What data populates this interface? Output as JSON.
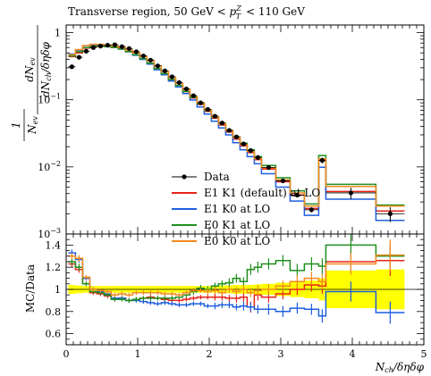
{
  "chart_data": [
    {
      "type": "line",
      "panel": "main",
      "title": "Transverse region, 50 GeV < p_T^Z < 110 GeV",
      "ylabel": "1/N_ev dN_ev/dN_ch/δηδφ",
      "yscale": "log",
      "ylim": [
        0.001,
        1.3
      ],
      "xlim": [
        0,
        5
      ],
      "grid": false,
      "legend_position": "lower-left",
      "y_tick_labels": [
        "1",
        "10^-1",
        "10^-2",
        "10^-3"
      ],
      "y_tick_values": [
        1,
        0.1,
        0.01,
        0.001
      ],
      "bin_edges": [
        0.03,
        0.13,
        0.23,
        0.33,
        0.43,
        0.53,
        0.63,
        0.73,
        0.83,
        0.93,
        1.03,
        1.13,
        1.23,
        1.33,
        1.43,
        1.53,
        1.63,
        1.73,
        1.83,
        1.93,
        2.03,
        2.13,
        2.23,
        2.33,
        2.43,
        2.53,
        2.63,
        2.73,
        2.93,
        3.13,
        3.33,
        3.53,
        3.63,
        4.33,
        4.73
      ],
      "data": {
        "name": "Data",
        "x": [
          0.08,
          0.18,
          0.28,
          0.38,
          0.48,
          0.58,
          0.68,
          0.78,
          0.88,
          0.98,
          1.08,
          1.18,
          1.28,
          1.38,
          1.48,
          1.58,
          1.68,
          1.78,
          1.88,
          1.98,
          2.08,
          2.18,
          2.28,
          2.38,
          2.48,
          2.58,
          2.68,
          2.83,
          3.03,
          3.23,
          3.43,
          3.58,
          3.98,
          4.53
        ],
        "y": [
          0.31,
          0.43,
          0.53,
          0.6,
          0.63,
          0.65,
          0.66,
          0.62,
          0.58,
          0.52,
          0.45,
          0.39,
          0.32,
          0.27,
          0.22,
          0.18,
          0.145,
          0.115,
          0.09,
          0.072,
          0.057,
          0.045,
          0.035,
          0.028,
          0.022,
          0.0175,
          0.0138,
          0.0098,
          0.0062,
          0.0038,
          0.0023,
          0.0125,
          0.0041,
          0.002
        ],
        "yerr": [
          0.02,
          0.02,
          0.02,
          0.02,
          0.02,
          0.02,
          0.02,
          0.02,
          0.02,
          0.02,
          0.02,
          0.015,
          0.012,
          0.01,
          0.009,
          0.008,
          0.007,
          0.006,
          0.005,
          0.004,
          0.003,
          0.003,
          0.002,
          0.002,
          0.0018,
          0.0014,
          0.0011,
          0.0008,
          0.0005,
          0.0003,
          0.0002,
          0.0012,
          0.0008,
          0.0005
        ]
      },
      "series": [
        {
          "name": "E1 K1 (default) at LO",
          "color": "#e8241a",
          "values": [
            0.44,
            0.5,
            0.59,
            0.62,
            0.63,
            0.62,
            0.6,
            0.57,
            0.52,
            0.47,
            0.41,
            0.35,
            0.29,
            0.245,
            0.2,
            0.163,
            0.132,
            0.106,
            0.085,
            0.067,
            0.053,
            0.042,
            0.033,
            0.026,
            0.0205,
            0.0163,
            0.0128,
            0.0093,
            0.006,
            0.0038,
            0.0024,
            0.0125,
            0.0043,
            0.0022
          ]
        },
        {
          "name": "E1 K0 at LO",
          "color": "#1f5fe0",
          "values": [
            0.48,
            0.55,
            0.64,
            0.66,
            0.66,
            0.64,
            0.61,
            0.57,
            0.52,
            0.46,
            0.4,
            0.34,
            0.28,
            0.235,
            0.19,
            0.155,
            0.124,
            0.099,
            0.078,
            0.061,
            0.048,
            0.038,
            0.03,
            0.023,
            0.018,
            0.0142,
            0.0111,
            0.0079,
            0.005,
            0.0031,
            0.0019,
            0.0099,
            0.0033,
            0.0016
          ]
        },
        {
          "name": "E0 K1 at LO",
          "color": "#1f8f1f",
          "values": [
            0.45,
            0.52,
            0.6,
            0.63,
            0.63,
            0.62,
            0.6,
            0.57,
            0.52,
            0.47,
            0.41,
            0.35,
            0.29,
            0.245,
            0.2,
            0.163,
            0.133,
            0.108,
            0.087,
            0.069,
            0.055,
            0.044,
            0.035,
            0.028,
            0.0225,
            0.018,
            0.0142,
            0.0105,
            0.0069,
            0.0044,
            0.0028,
            0.0148,
            0.0055,
            0.0027
          ]
        },
        {
          "name": "E0 K0 at LO",
          "color": "#f28a1e",
          "values": [
            0.47,
            0.56,
            0.64,
            0.67,
            0.67,
            0.65,
            0.63,
            0.6,
            0.55,
            0.5,
            0.44,
            0.38,
            0.32,
            0.265,
            0.215,
            0.175,
            0.142,
            0.113,
            0.09,
            0.071,
            0.056,
            0.044,
            0.035,
            0.0275,
            0.0215,
            0.017,
            0.0133,
            0.0097,
            0.0064,
            0.0041,
            0.0026,
            0.0132,
            0.0051,
            0.0026
          ]
        }
      ]
    },
    {
      "type": "line",
      "panel": "ratio",
      "ylabel": "MC/Data",
      "xlabel": "N_ch/δηδφ",
      "ylim": [
        0.5,
        1.5
      ],
      "xlim": [
        0,
        5
      ],
      "y_tick_labels": [
        "0.6",
        "0.8",
        "1",
        "1.2",
        "1.4"
      ],
      "y_tick_values": [
        0.6,
        0.8,
        1.0,
        1.2,
        1.4
      ],
      "x_tick_labels": [
        "0",
        "1",
        "2",
        "3",
        "4",
        "5"
      ],
      "x_tick_values": [
        0,
        1,
        2,
        3,
        4,
        5
      ],
      "band_color": "#ffff00",
      "band_halfwidth": [
        0.04,
        0.035,
        0.03,
        0.03,
        0.03,
        0.03,
        0.03,
        0.03,
        0.03,
        0.03,
        0.03,
        0.03,
        0.03,
        0.03,
        0.03,
        0.03,
        0.03,
        0.03,
        0.03,
        0.03,
        0.03,
        0.035,
        0.035,
        0.04,
        0.04,
        0.04,
        0.045,
        0.05,
        0.06,
        0.07,
        0.08,
        0.1,
        0.17,
        0.18
      ],
      "series": [
        {
          "name": "E1 K1 (default) at LO",
          "color": "#e8241a",
          "values": [
            1.23,
            1.18,
            1.05,
            0.97,
            0.96,
            0.94,
            0.91,
            0.92,
            0.9,
            0.91,
            0.92,
            0.93,
            0.92,
            0.91,
            0.9,
            0.9,
            0.91,
            0.92,
            0.93,
            0.93,
            0.93,
            0.93,
            0.92,
            0.92,
            0.93,
            0.84,
            0.95,
            0.93,
            0.96,
            1.0,
            1.04,
            1.03,
            1.25,
            1.26
          ],
          "errors": [
            0.03,
            0.03,
            0.02,
            0.02,
            0.02,
            0.02,
            0.02,
            0.02,
            0.02,
            0.02,
            0.02,
            0.02,
            0.02,
            0.02,
            0.02,
            0.02,
            0.02,
            0.02,
            0.02,
            0.02,
            0.03,
            0.03,
            0.03,
            0.04,
            0.04,
            0.05,
            0.05,
            0.05,
            0.05,
            0.05,
            0.06,
            0.07,
            0.1,
            0.14
          ]
        },
        {
          "name": "E1 K0 at LO",
          "color": "#1f5fe0",
          "values": [
            1.33,
            1.27,
            1.1,
            1.0,
            0.98,
            0.96,
            0.92,
            0.92,
            0.9,
            0.9,
            0.89,
            0.88,
            0.87,
            0.88,
            0.87,
            0.86,
            0.86,
            0.87,
            0.87,
            0.85,
            0.85,
            0.86,
            0.86,
            0.84,
            0.85,
            0.84,
            0.82,
            0.82,
            0.8,
            0.83,
            0.82,
            0.76,
            0.98,
            0.79
          ],
          "errors": [
            0.03,
            0.03,
            0.02,
            0.02,
            0.02,
            0.02,
            0.02,
            0.02,
            0.02,
            0.02,
            0.02,
            0.02,
            0.02,
            0.02,
            0.02,
            0.02,
            0.02,
            0.02,
            0.02,
            0.02,
            0.03,
            0.03,
            0.03,
            0.03,
            0.04,
            0.04,
            0.04,
            0.05,
            0.05,
            0.05,
            0.05,
            0.06,
            0.09,
            0.1
          ]
        },
        {
          "name": "E0 K1 at LO",
          "color": "#1f8f1f",
          "values": [
            1.25,
            1.2,
            1.05,
            0.98,
            0.97,
            0.95,
            0.91,
            0.91,
            0.9,
            0.91,
            0.92,
            0.92,
            0.92,
            0.92,
            0.92,
            0.93,
            0.95,
            0.98,
            1.01,
            1.0,
            1.03,
            1.05,
            1.06,
            1.1,
            1.07,
            1.18,
            1.2,
            1.23,
            1.26,
            1.17,
            1.23,
            1.21,
            1.4,
            1.3
          ],
          "errors": [
            0.03,
            0.03,
            0.02,
            0.02,
            0.02,
            0.02,
            0.02,
            0.02,
            0.02,
            0.02,
            0.02,
            0.02,
            0.02,
            0.02,
            0.02,
            0.02,
            0.02,
            0.03,
            0.03,
            0.03,
            0.03,
            0.03,
            0.04,
            0.04,
            0.04,
            0.05,
            0.05,
            0.05,
            0.05,
            0.06,
            0.06,
            0.07,
            0.1,
            0.12
          ]
        },
        {
          "name": "E0 K0 at LO",
          "color": "#f28a1e",
          "values": [
            1.3,
            1.28,
            1.11,
            1.0,
            0.99,
            0.98,
            0.95,
            0.96,
            0.95,
            0.97,
            0.97,
            0.97,
            0.97,
            0.96,
            0.96,
            0.95,
            0.97,
            0.99,
            0.99,
            0.98,
            0.99,
            0.97,
            1.0,
            0.98,
            1.0,
            0.97,
            0.99,
            1.0,
            1.03,
            1.07,
            1.1,
            1.07,
            1.23,
            1.31
          ],
          "errors": [
            0.03,
            0.03,
            0.02,
            0.02,
            0.02,
            0.02,
            0.02,
            0.02,
            0.02,
            0.02,
            0.02,
            0.02,
            0.02,
            0.02,
            0.02,
            0.02,
            0.02,
            0.02,
            0.02,
            0.03,
            0.03,
            0.03,
            0.03,
            0.04,
            0.04,
            0.04,
            0.05,
            0.05,
            0.05,
            0.06,
            0.06,
            0.07,
            0.1,
            0.14
          ]
        }
      ]
    }
  ],
  "legend": {
    "data_label": "Data",
    "entries": [
      "E1 K1 (default) at LO",
      "E1 K0 at LO",
      "E0 K1 at LO",
      "E0 K0 at LO"
    ]
  }
}
